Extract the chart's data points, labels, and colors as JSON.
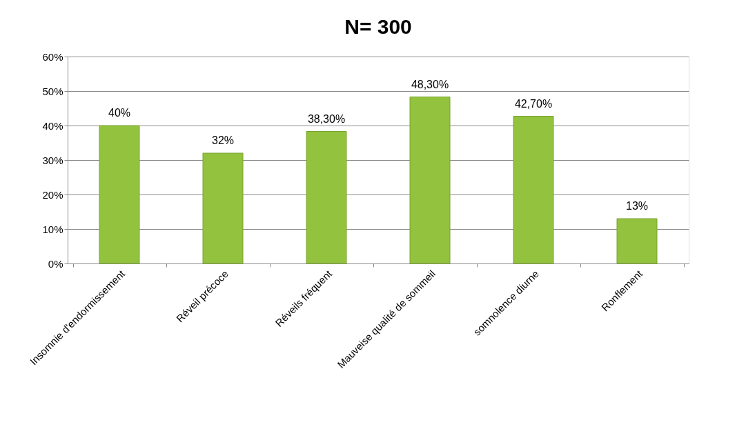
{
  "chart_data": {
    "type": "bar",
    "title": "N= 300",
    "categories": [
      "Insomnie d'endormissement",
      "Réveil précoce",
      "Réveils fréquent",
      "Mauveise qualité de sommeil",
      "somnolence diurne",
      "Ronflement"
    ],
    "values": [
      40,
      32,
      38.3,
      48.3,
      42.7,
      13
    ],
    "value_labels": [
      "40%",
      "32%",
      "38,30%",
      "48,30%",
      "42,70%",
      "13%"
    ],
    "color": "#92c23e",
    "ylim": [
      0,
      60
    ],
    "yticks": [
      {
        "value": 0,
        "label": "0%"
      },
      {
        "value": 10,
        "label": "10%"
      },
      {
        "value": 20,
        "label": "20%"
      },
      {
        "value": 30,
        "label": "30%"
      },
      {
        "value": 40,
        "label": "40%"
      },
      {
        "value": 50,
        "label": "50%"
      },
      {
        "value": 60,
        "label": "60%"
      }
    ],
    "grid": "y"
  }
}
